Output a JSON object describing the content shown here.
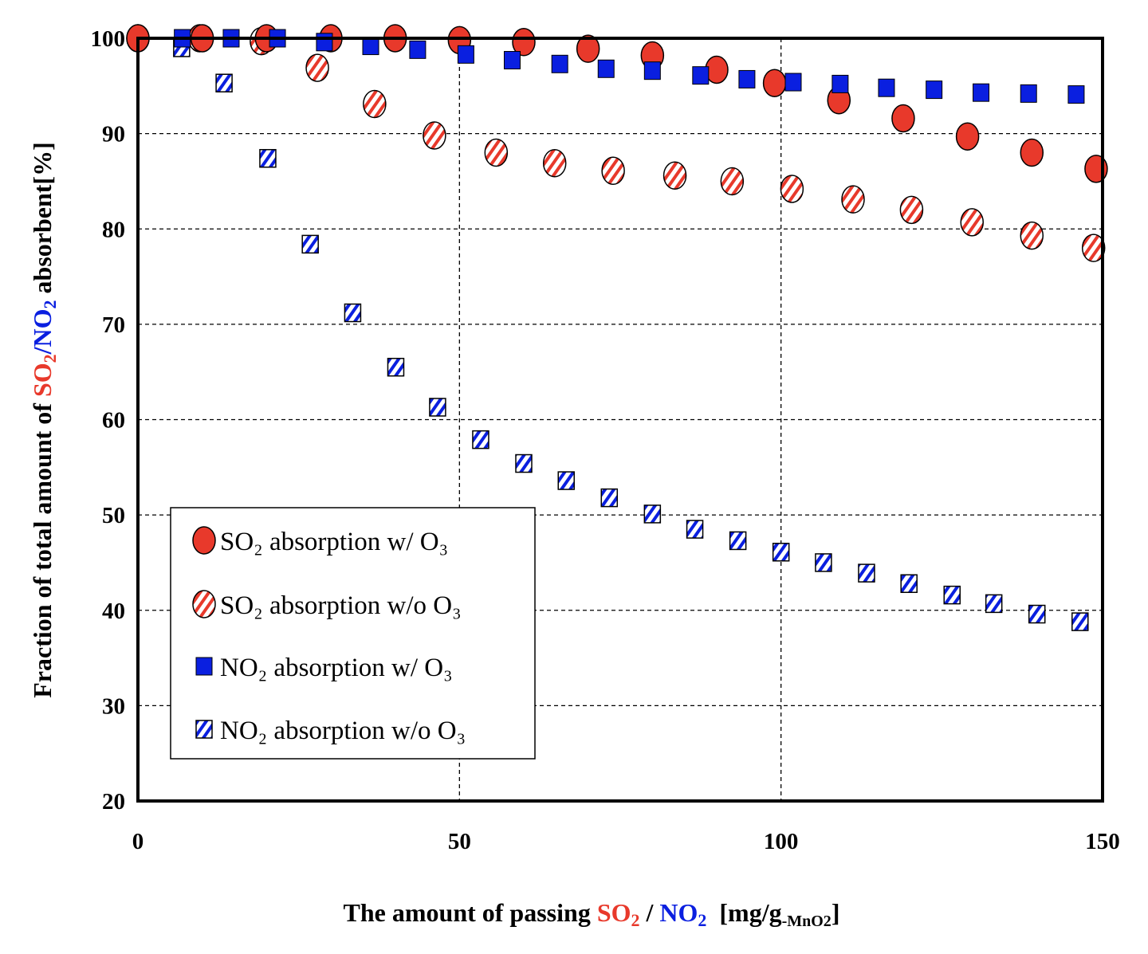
{
  "chart_data": {
    "type": "scatter",
    "xlabel": {
      "prefix": "The amount of passing ",
      "so2": "SO",
      "so2_sub": "2",
      "sep": " / ",
      "no2": "NO",
      "no2_sub": "2",
      "unit_open": "  [mg/g",
      "unit_sub": "-MnO2",
      "unit_close": "]"
    },
    "ylabel": {
      "prefix": "Fraction of total amount of ",
      "so2": "SO",
      "so2_sub": "2",
      "sep": "/",
      "no2": "NO",
      "no2_sub": "2",
      "suffix": " absorbent[%]"
    },
    "xlim": [
      0,
      150
    ],
    "ylim": [
      20,
      100
    ],
    "xticks": [
      "0",
      "50",
      "100",
      "150"
    ],
    "yticks": [
      "20",
      "30",
      "40",
      "50",
      "60",
      "70",
      "80",
      "90",
      "100"
    ],
    "grid": "dashed at x=50,100 and y=30..90",
    "legend_position": "bottom-left",
    "colors": {
      "so2": "#e8392b",
      "no2": "#0a1fe0"
    },
    "series": [
      {
        "name": "SO₂ absorption w/ O₃",
        "marker": "circle-filled",
        "color": "#e8392b",
        "x": [
          0,
          10,
          20,
          30,
          40,
          50,
          60,
          70,
          80,
          90,
          99,
          109,
          119,
          129,
          139,
          149
        ],
        "y": [
          100,
          100,
          100,
          100,
          100,
          99.8,
          99.6,
          98.9,
          98.2,
          96.7,
          95.3,
          93.5,
          91.6,
          89.7,
          88.0,
          86.3
        ]
      },
      {
        "name": "SO₂ absorption w/o O₃",
        "marker": "circle-hatched",
        "color": "#e8392b",
        "x": [
          0,
          9.6,
          19.2,
          27.9,
          36.8,
          46.1,
          55.7,
          64.8,
          73.9,
          83.5,
          92.4,
          101.7,
          111.2,
          120.3,
          129.7,
          139,
          148.6
        ],
        "y": [
          100,
          100,
          99.7,
          96.9,
          93.1,
          89.8,
          88.0,
          86.9,
          86.1,
          85.6,
          85.0,
          84.2,
          83.1,
          82.0,
          80.7,
          79.3,
          78.0
        ]
      },
      {
        "name": "NO₂  absorption w/ O₃",
        "marker": "square-filled",
        "color": "#0a1fe0",
        "x": [
          6.9,
          14.5,
          21.7,
          29,
          36.2,
          43.5,
          51,
          58.2,
          65.6,
          72.8,
          80,
          87.5,
          94.7,
          101.9,
          109.2,
          116.4,
          123.8,
          131.1,
          138.5,
          145.9
        ],
        "y": [
          100,
          100,
          100,
          99.6,
          99.2,
          98.8,
          98.3,
          97.7,
          97.3,
          96.8,
          96.6,
          96.1,
          95.7,
          95.4,
          95.2,
          94.8,
          94.6,
          94.3,
          94.2,
          94.1
        ]
      },
      {
        "name": "NO₂ absorption w/o O₃",
        "marker": "square-hatched",
        "color": "#0a1fe0",
        "x": [
          0,
          6.8,
          13.4,
          20.2,
          26.8,
          33.4,
          40.1,
          46.6,
          53.3,
          60,
          66.6,
          73.3,
          80,
          86.6,
          93.3,
          100,
          106.6,
          113.3,
          119.9,
          126.6,
          133.1,
          139.8,
          146.5
        ],
        "y": [
          100,
          99.0,
          95.3,
          87.4,
          78.4,
          71.2,
          65.5,
          61.3,
          57.9,
          55.4,
          53.6,
          51.8,
          50.1,
          48.5,
          47.3,
          46.1,
          45.0,
          43.9,
          42.8,
          41.6,
          40.7,
          39.6,
          38.8
        ]
      }
    ]
  }
}
